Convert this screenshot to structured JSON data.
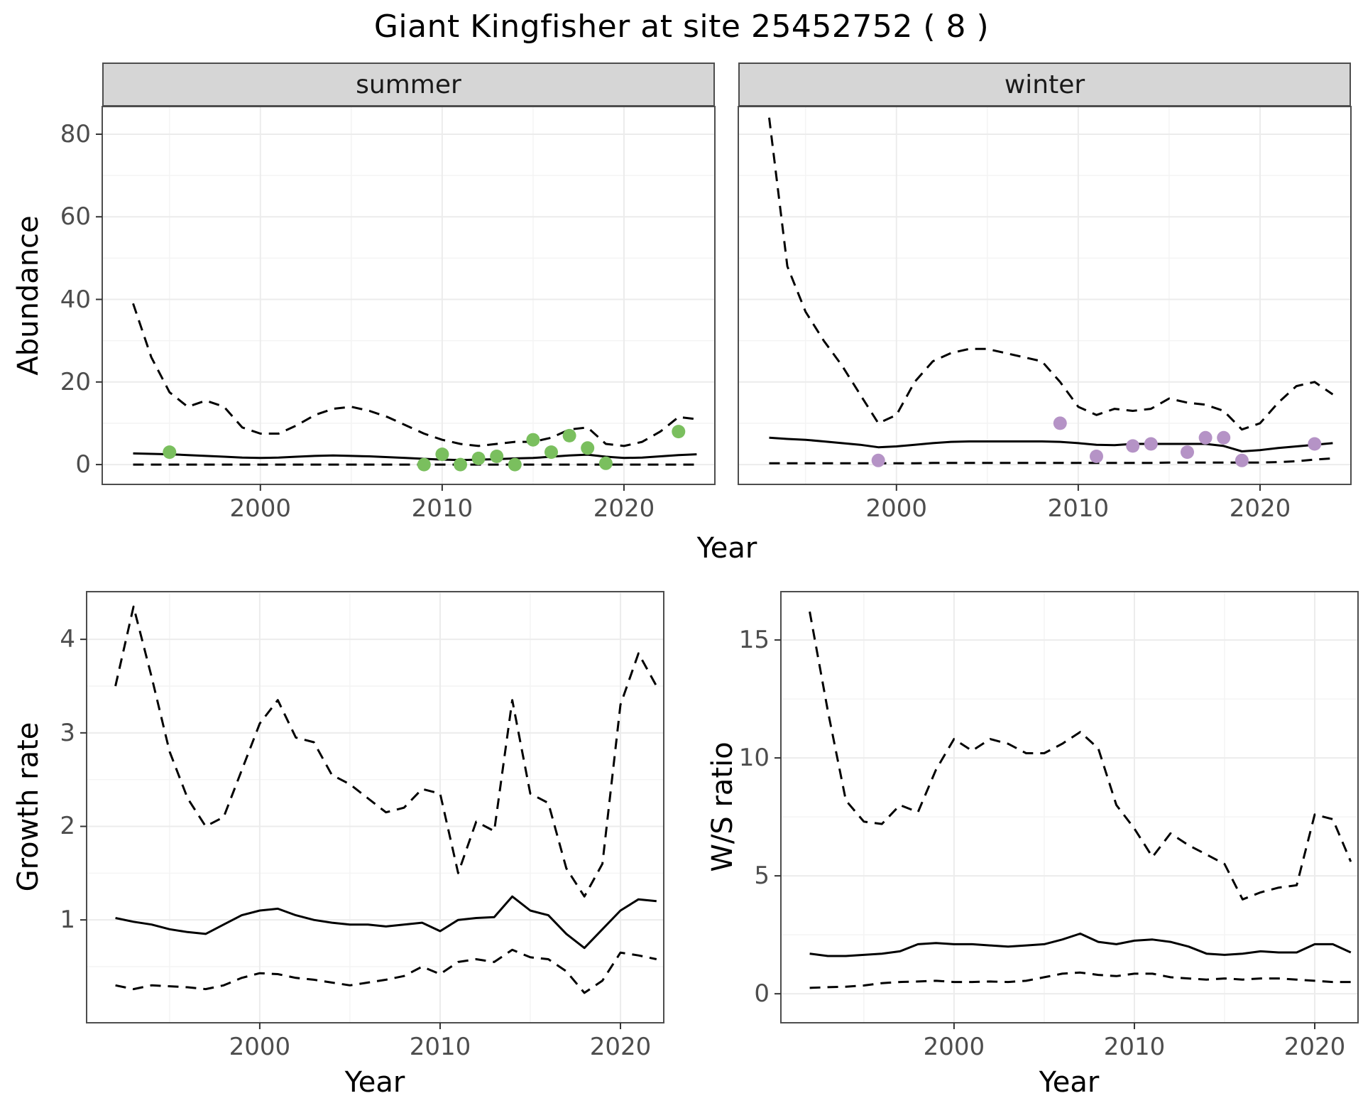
{
  "title": "Giant Kingfisher at site 25452752 ( 8 )",
  "facets": {
    "summer": "summer",
    "winter": "winter"
  },
  "axis_labels": {
    "abundance": "Abundance",
    "year": "Year",
    "growth_rate": "Growth rate",
    "ws_ratio": "W/S ratio"
  },
  "colors": {
    "summer_points": "#7ABF5E",
    "winter_points": "#B593C6",
    "line": "#000000",
    "strip_bg": "#D6D6D6",
    "panel_border": "#4D4D4D",
    "grid_major": "#ECECEC",
    "grid_minor": "#F4F4F4",
    "tick_text": "#4D4D4D"
  },
  "chart_data": [
    {
      "id": "abundance_summer",
      "type": "line",
      "strip": "summer",
      "xlabel": "Year",
      "ylabel": "Abundance",
      "xlim": [
        1991.3,
        2025.0
      ],
      "ylim": [
        -4.8,
        86.7
      ],
      "xticks": [
        2000,
        2010,
        2020
      ],
      "yticks": [
        0,
        20,
        40,
        60,
        80
      ],
      "x": [
        1993,
        1994,
        1995,
        1996,
        1997,
        1998,
        1999,
        2000,
        2001,
        2002,
        2003,
        2004,
        2005,
        2006,
        2007,
        2008,
        2009,
        2010,
        2011,
        2012,
        2013,
        2014,
        2015,
        2016,
        2017,
        2018,
        2019,
        2020,
        2021,
        2022,
        2023,
        2024
      ],
      "series": [
        {
          "name": "upper_95ci",
          "style": "dashed",
          "values": [
            39,
            26,
            17.5,
            14,
            15.5,
            14,
            9,
            7.5,
            7.5,
            9.5,
            12,
            13.5,
            14,
            13,
            11.5,
            9.5,
            7.5,
            6,
            5,
            4.5,
            5,
            5.5,
            5.5,
            6.5,
            8.5,
            9,
            5,
            4.5,
            5.5,
            8,
            11.5,
            11
          ]
        },
        {
          "name": "median",
          "style": "solid",
          "values": [
            2.7,
            2.6,
            2.5,
            2.3,
            2.1,
            1.9,
            1.7,
            1.6,
            1.7,
            1.9,
            2.1,
            2.2,
            2.1,
            2.0,
            1.8,
            1.6,
            1.4,
            1.2,
            1.1,
            1.2,
            1.3,
            1.5,
            1.6,
            1.9,
            2.2,
            2.4,
            1.9,
            1.6,
            1.7,
            2.0,
            2.3,
            2.5
          ]
        },
        {
          "name": "lower_95ci",
          "style": "dashed",
          "values": [
            0,
            0,
            0,
            0,
            0,
            0,
            0,
            0,
            0,
            0,
            0,
            0,
            0,
            0,
            0,
            0,
            0,
            0,
            0,
            0,
            0,
            0,
            0,
            0,
            0,
            0,
            0,
            0,
            0,
            0,
            0,
            0
          ]
        }
      ],
      "points": {
        "name": "observed_counts",
        "color": "#7ABF5E",
        "x": [
          1995,
          2009,
          2010,
          2011,
          2012,
          2013,
          2014,
          2015,
          2016,
          2017,
          2018,
          2019,
          2023
        ],
        "y": [
          3,
          0,
          2.5,
          0,
          1.5,
          2,
          0,
          6,
          3,
          7,
          4,
          0.3,
          8
        ]
      }
    },
    {
      "id": "abundance_winter",
      "type": "line",
      "strip": "winter",
      "xlabel": "Year",
      "ylabel": "Abundance",
      "xlim": [
        1991.3,
        2025.0
      ],
      "ylim": [
        -4.8,
        86.7
      ],
      "xticks": [
        2000,
        2010,
        2020
      ],
      "yticks": [
        0,
        20,
        40,
        60,
        80
      ],
      "x": [
        1993,
        1994,
        1995,
        1996,
        1997,
        1998,
        1999,
        2000,
        2001,
        2002,
        2003,
        2004,
        2005,
        2006,
        2007,
        2008,
        2009,
        2010,
        2011,
        2012,
        2013,
        2014,
        2015,
        2016,
        2017,
        2018,
        2019,
        2020,
        2021,
        2022,
        2023,
        2024
      ],
      "series": [
        {
          "name": "upper_95ci",
          "style": "dashed",
          "values": [
            84,
            48,
            37,
            30,
            24,
            17,
            10,
            12,
            20,
            25,
            27,
            28,
            28,
            27,
            26,
            25,
            20,
            14,
            12,
            13.5,
            13,
            13.5,
            16,
            15,
            14.5,
            13,
            8.5,
            10,
            15,
            19,
            20,
            17
          ]
        },
        {
          "name": "median",
          "style": "solid",
          "values": [
            6.5,
            6.2,
            6.0,
            5.6,
            5.2,
            4.8,
            4.2,
            4.4,
            4.8,
            5.2,
            5.5,
            5.6,
            5.6,
            5.6,
            5.6,
            5.6,
            5.5,
            5.2,
            4.8,
            4.7,
            5.0,
            5.0,
            5.0,
            5.0,
            5.0,
            4.5,
            3.2,
            3.5,
            4.0,
            4.4,
            4.8,
            5.2
          ]
        },
        {
          "name": "lower_95ci",
          "style": "dashed",
          "values": [
            0.3,
            0.3,
            0.3,
            0.3,
            0.3,
            0.3,
            0.3,
            0.3,
            0.3,
            0.4,
            0.4,
            0.4,
            0.4,
            0.4,
            0.4,
            0.4,
            0.4,
            0.4,
            0.4,
            0.4,
            0.4,
            0.4,
            0.5,
            0.5,
            0.5,
            0.5,
            0.5,
            0.5,
            0.6,
            0.8,
            1.2,
            1.5
          ]
        }
      ],
      "points": {
        "name": "observed_counts",
        "color": "#B593C6",
        "x": [
          1999,
          2009,
          2011,
          2013,
          2014,
          2016,
          2017,
          2018,
          2019,
          2023
        ],
        "y": [
          1,
          10,
          2,
          4.5,
          5,
          3,
          6.5,
          6.5,
          1,
          5
        ]
      }
    },
    {
      "id": "growth_rate",
      "type": "line",
      "strip": null,
      "xlabel": "Year",
      "ylabel": "Growth rate",
      "xlim": [
        1990.4,
        2022.4
      ],
      "ylim": [
        -0.1,
        4.51
      ],
      "xticks": [
        2000,
        2010,
        2020
      ],
      "yticks": [
        1,
        2,
        3,
        4
      ],
      "x": [
        1992,
        1993,
        1994,
        1995,
        1996,
        1997,
        1998,
        1999,
        2000,
        2001,
        2002,
        2003,
        2004,
        2005,
        2006,
        2007,
        2008,
        2009,
        2010,
        2011,
        2012,
        2013,
        2014,
        2015,
        2016,
        2017,
        2018,
        2019,
        2020,
        2021,
        2022
      ],
      "series": [
        {
          "name": "upper_95ci",
          "style": "dashed",
          "values": [
            3.5,
            4.35,
            3.6,
            2.8,
            2.3,
            2.0,
            2.1,
            2.6,
            3.1,
            3.35,
            2.95,
            2.9,
            2.55,
            2.45,
            2.3,
            2.15,
            2.2,
            2.4,
            2.35,
            1.5,
            2.05,
            1.95,
            3.35,
            2.35,
            2.25,
            1.55,
            1.25,
            1.6,
            3.3,
            3.85,
            3.5
          ]
        },
        {
          "name": "median",
          "style": "solid",
          "values": [
            1.02,
            0.98,
            0.95,
            0.9,
            0.87,
            0.85,
            0.95,
            1.05,
            1.1,
            1.12,
            1.05,
            1.0,
            0.97,
            0.95,
            0.95,
            0.93,
            0.95,
            0.97,
            0.88,
            1.0,
            1.02,
            1.03,
            1.25,
            1.1,
            1.05,
            0.85,
            0.7,
            0.9,
            1.1,
            1.22,
            1.2
          ]
        },
        {
          "name": "lower_95ci",
          "style": "dashed",
          "values": [
            0.3,
            0.26,
            0.3,
            0.29,
            0.28,
            0.26,
            0.3,
            0.38,
            0.43,
            0.42,
            0.38,
            0.36,
            0.33,
            0.3,
            0.33,
            0.36,
            0.4,
            0.5,
            0.42,
            0.55,
            0.58,
            0.55,
            0.68,
            0.6,
            0.58,
            0.45,
            0.22,
            0.35,
            0.65,
            0.62,
            0.58
          ]
        }
      ],
      "points": null
    },
    {
      "id": "ws_ratio",
      "type": "line",
      "strip": null,
      "xlabel": "Year",
      "ylabel": "W/S ratio",
      "xlim": [
        1990.4,
        2022.4
      ],
      "ylim": [
        -1.23,
        17.05
      ],
      "xticks": [
        2000,
        2010,
        2020
      ],
      "yticks": [
        0,
        5,
        10,
        15
      ],
      "x": [
        1992,
        1993,
        1994,
        1995,
        1996,
        1997,
        1998,
        1999,
        2000,
        2001,
        2002,
        2003,
        2004,
        2005,
        2006,
        2007,
        2008,
        2009,
        2010,
        2011,
        2012,
        2013,
        2014,
        2015,
        2016,
        2017,
        2018,
        2019,
        2020,
        2021,
        2022
      ],
      "series": [
        {
          "name": "upper_95ci",
          "style": "dashed",
          "values": [
            16.2,
            12.0,
            8.2,
            7.3,
            7.2,
            8.0,
            7.7,
            9.5,
            10.8,
            10.3,
            10.8,
            10.6,
            10.2,
            10.2,
            10.6,
            11.1,
            10.4,
            8.0,
            7.0,
            5.8,
            6.8,
            6.3,
            5.9,
            5.5,
            4.0,
            4.3,
            4.5,
            4.6,
            7.6,
            7.4,
            5.6
          ]
        },
        {
          "name": "median",
          "style": "solid",
          "values": [
            1.7,
            1.6,
            1.6,
            1.65,
            1.7,
            1.8,
            2.1,
            2.15,
            2.1,
            2.1,
            2.05,
            2.0,
            2.05,
            2.1,
            2.3,
            2.55,
            2.2,
            2.1,
            2.25,
            2.3,
            2.2,
            2.0,
            1.7,
            1.65,
            1.7,
            1.8,
            1.75,
            1.75,
            2.1,
            2.1,
            1.75
          ]
        },
        {
          "name": "lower_95ci",
          "style": "dashed",
          "values": [
            0.25,
            0.28,
            0.3,
            0.35,
            0.45,
            0.5,
            0.52,
            0.55,
            0.5,
            0.5,
            0.52,
            0.5,
            0.55,
            0.7,
            0.85,
            0.9,
            0.8,
            0.75,
            0.85,
            0.85,
            0.7,
            0.65,
            0.6,
            0.65,
            0.6,
            0.65,
            0.65,
            0.6,
            0.55,
            0.5,
            0.5
          ]
        }
      ],
      "points": null
    }
  ]
}
